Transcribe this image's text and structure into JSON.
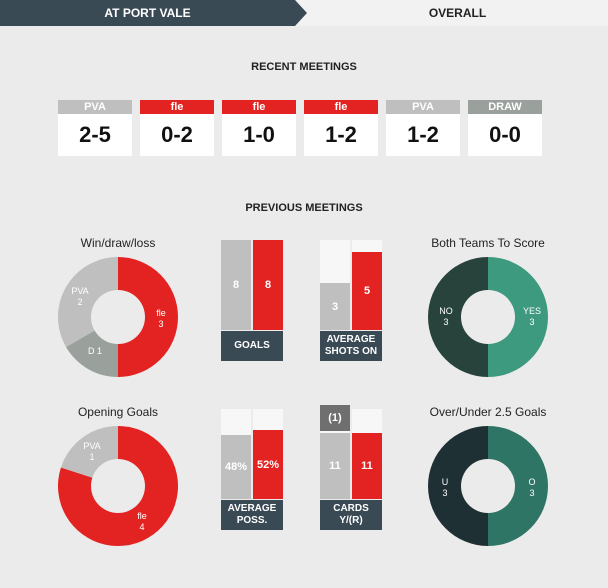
{
  "tabs": [
    {
      "label": "AT PORT VALE",
      "active": true
    },
    {
      "label": "OVERALL",
      "active": false
    }
  ],
  "recent": {
    "title": "RECENT MEETINGS",
    "matches": [
      {
        "team": "PVA",
        "score": "2-5",
        "color": "#bfbfbf"
      },
      {
        "team": "fle",
        "score": "0-2",
        "color": "#e32222"
      },
      {
        "team": "fle",
        "score": "1-0",
        "color": "#e32222"
      },
      {
        "team": "fle",
        "score": "1-2",
        "color": "#e32222"
      },
      {
        "team": "PVA",
        "score": "1-2",
        "color": "#bfbfbf"
      },
      {
        "team": "DRAW",
        "score": "0-0",
        "color": "#9aa09b"
      }
    ]
  },
  "previous": {
    "title": "PREVIOUS MEETINGS",
    "wdl": {
      "title": "Win/draw/loss",
      "slices": [
        {
          "label": "fle",
          "value": 3,
          "color": "#e32222"
        },
        {
          "label": "D",
          "value": 1,
          "color": "#9aa09b"
        },
        {
          "label": "PVA",
          "value": 2,
          "color": "#bfbfbf"
        }
      ]
    },
    "btts": {
      "title": "Both Teams To Score",
      "slices": [
        {
          "label": "YES",
          "value": 3,
          "color": "#3d9a7f"
        },
        {
          "label": "NO",
          "value": 3,
          "color": "#27433c"
        }
      ]
    },
    "opening": {
      "title": "Opening Goals",
      "slices": [
        {
          "label": "fle",
          "value": 4,
          "color": "#e32222"
        },
        {
          "label": "PVA",
          "value": 1,
          "color": "#bfbfbf"
        }
      ]
    },
    "overunder": {
      "title": "Over/Under 2.5 Goals",
      "slices": [
        {
          "label": "O",
          "value": 3,
          "color": "#2f7565"
        },
        {
          "label": "U",
          "value": 3,
          "color": "#1f3034"
        }
      ]
    },
    "goals": {
      "label": "GOALS",
      "home": 8,
      "away": 8,
      "max": 8,
      "home_text": "8",
      "away_text": "8"
    },
    "shots": {
      "label1": "AVERAGE",
      "label2": "SHOTS ON",
      "home": 3,
      "away": 5,
      "max": 5.8,
      "home_text": "3",
      "away_text": "5"
    },
    "poss": {
      "label1": "AVERAGE",
      "label2": "POSS.",
      "home": 48,
      "away": 52,
      "max": 68,
      "home_text": "48%",
      "away_text": "52%"
    },
    "cards": {
      "label1": "CARDS",
      "label2": "Y/(R)",
      "home_yellow": 11,
      "home_red": 1,
      "away_yellow": 11,
      "max": 15,
      "home_text": "11",
      "home_red_text": "(1)",
      "away_text": "11"
    }
  }
}
